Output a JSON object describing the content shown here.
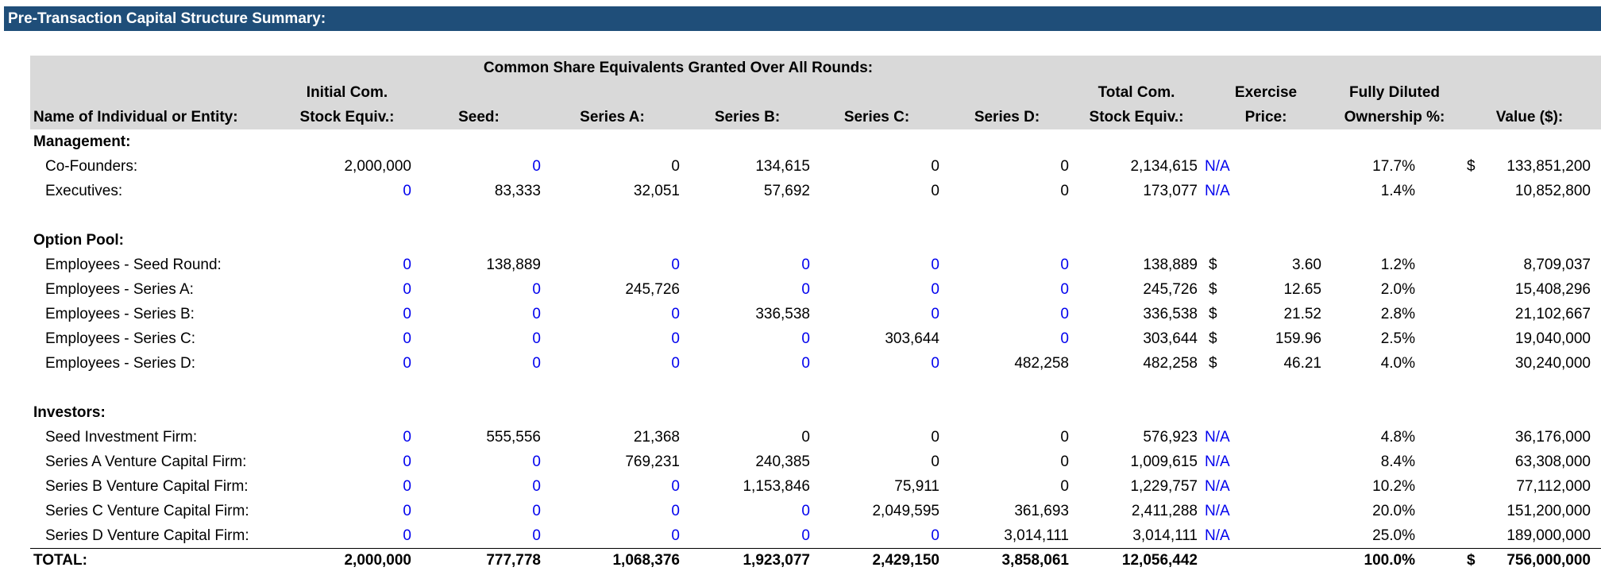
{
  "header": {
    "title": "Pre-Transaction Capital Structure Summary:"
  },
  "table": {
    "group_header": "Common Share Equivalents Granted Over All Rounds:",
    "columns": [
      [
        "Name of Individual or Entity:"
      ],
      [
        "Initial Com.",
        "Stock Equiv.:"
      ],
      [
        "Seed:"
      ],
      [
        "Series A:"
      ],
      [
        "Series B:"
      ],
      [
        "Series C:"
      ],
      [
        "Series D:"
      ],
      [
        "Total Com.",
        "Stock Equiv.:"
      ],
      [
        "Exercise",
        "Price:"
      ],
      [
        "Fully Diluted",
        "Ownership %:"
      ],
      [
        "Value ($):"
      ]
    ],
    "sections": [
      {
        "label": "Management:",
        "rows": [
          {
            "name": "Co-Founders:",
            "values": [
              "2,000,000",
              "0",
              "0",
              "134,615",
              "0",
              "0",
              "2,134,615"
            ],
            "exercise": "N/A",
            "ownership": "17.7%",
            "value_currency": "$",
            "value": "133,851,200"
          },
          {
            "name": "Executives:",
            "values": [
              "0",
              "83,333",
              "32,051",
              "57,692",
              "0",
              "0",
              "173,077"
            ],
            "exercise": "N/A",
            "ownership": "1.4%",
            "value": "10,852,800"
          }
        ]
      },
      {
        "label": "Option Pool:",
        "rows": [
          {
            "name": "Employees - Seed Round:",
            "values": [
              "0",
              "138,889",
              "0",
              "0",
              "0",
              "0",
              "138,889"
            ],
            "exercise": {
              "currency": "$",
              "amount": "3.60"
            },
            "ownership": "1.2%",
            "value": "8,709,037"
          },
          {
            "name": "Employees - Series A:",
            "values": [
              "0",
              "0",
              "245,726",
              "0",
              "0",
              "0",
              "245,726"
            ],
            "exercise": {
              "currency": "$",
              "amount": "12.65"
            },
            "ownership": "2.0%",
            "value": "15,408,296"
          },
          {
            "name": "Employees - Series B:",
            "values": [
              "0",
              "0",
              "0",
              "336,538",
              "0",
              "0",
              "336,538"
            ],
            "exercise": {
              "currency": "$",
              "amount": "21.52"
            },
            "ownership": "2.8%",
            "value": "21,102,667"
          },
          {
            "name": "Employees - Series C:",
            "values": [
              "0",
              "0",
              "0",
              "0",
              "303,644",
              "0",
              "303,644"
            ],
            "exercise": {
              "currency": "$",
              "amount": "159.96"
            },
            "ownership": "2.5%",
            "value": "19,040,000"
          },
          {
            "name": "Employees - Series D:",
            "values": [
              "0",
              "0",
              "0",
              "0",
              "0",
              "482,258",
              "482,258"
            ],
            "exercise": {
              "currency": "$",
              "amount": "46.21"
            },
            "ownership": "4.0%",
            "value": "30,240,000"
          }
        ]
      },
      {
        "label": "Investors:",
        "rows": [
          {
            "name": "Seed Investment Firm:",
            "values": [
              "0",
              "555,556",
              "21,368",
              "0",
              "0",
              "0",
              "576,923"
            ],
            "exercise": "N/A",
            "ownership": "4.8%",
            "value": "36,176,000"
          },
          {
            "name": "Series A Venture Capital Firm:",
            "values": [
              "0",
              "0",
              "769,231",
              "240,385",
              "0",
              "0",
              "1,009,615"
            ],
            "exercise": "N/A",
            "ownership": "8.4%",
            "value": "63,308,000"
          },
          {
            "name": "Series B Venture Capital Firm:",
            "values": [
              "0",
              "0",
              "0",
              "1,153,846",
              "75,911",
              "0",
              "1,229,757"
            ],
            "exercise": "N/A",
            "ownership": "10.2%",
            "value": "77,112,000"
          },
          {
            "name": "Series C Venture Capital Firm:",
            "values": [
              "0",
              "0",
              "0",
              "0",
              "2,049,595",
              "361,693",
              "2,411,288"
            ],
            "exercise": "N/A",
            "ownership": "20.0%",
            "value": "151,200,000"
          },
          {
            "name": "Series D Venture Capital Firm:",
            "values": [
              "0",
              "0",
              "0",
              "0",
              "0",
              "3,014,111",
              "3,014,111"
            ],
            "exercise": "N/A",
            "ownership": "25.0%",
            "value": "189,000,000"
          }
        ]
      }
    ],
    "total": {
      "name": "TOTAL:",
      "values": [
        "2,000,000",
        "777,778",
        "1,068,376",
        "1,923,077",
        "2,429,150",
        "3,858,061",
        "12,056,442"
      ],
      "ownership": "100.0%",
      "value_currency": "$",
      "value": "756,000,000"
    }
  }
}
